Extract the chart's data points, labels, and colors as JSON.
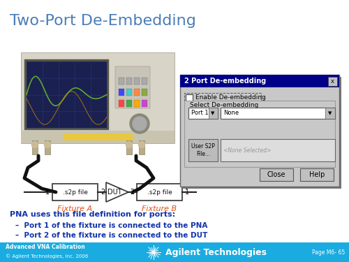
{
  "title": "Two-Port De-Embedding",
  "title_color": "#4B7DB8",
  "title_fontsize": 16,
  "bg_color": "#FFFFFF",
  "footer_bg": "#1AACE0",
  "footer_left1": "Advanced VNA Calibration",
  "footer_left2": "© Agilent Technologies, Inc. 2006",
  "footer_right": "Page M6- 65",
  "footer_company": "Agilent Technologies",
  "fixture_a_label": "Fixture A",
  "fixture_b_label": "Fixture B",
  "s2p_label": ".s2p file",
  "dut_label": "DUT",
  "body_text_header": "PNA uses this file definition for ports:",
  "body_text_line1": "Port 1 of the fixture is connected to the PNA",
  "body_text_line2": "Port 2 of the fixture is connected to the DUT",
  "fixture_text_color": "#E05010",
  "body_text_color": "#1133AA",
  "dialog_title": "2 Port De-embedding",
  "dialog_title_bg": "#000088",
  "dialog_enable": "Enable De-embedding",
  "dialog_select": "Select De-embedding",
  "dialog_port": "Port 1",
  "dialog_none": "None",
  "dialog_user_s2p": "User S2P\nFile...",
  "dialog_none_selected": "<None Selected>",
  "dialog_close": "Close",
  "dialog_help": "Help",
  "vna_body_color": "#D8D4C8",
  "vna_screen_color": "#1A2050",
  "vna_screen_line": "#304080",
  "vna_trace_color": "#60A830"
}
